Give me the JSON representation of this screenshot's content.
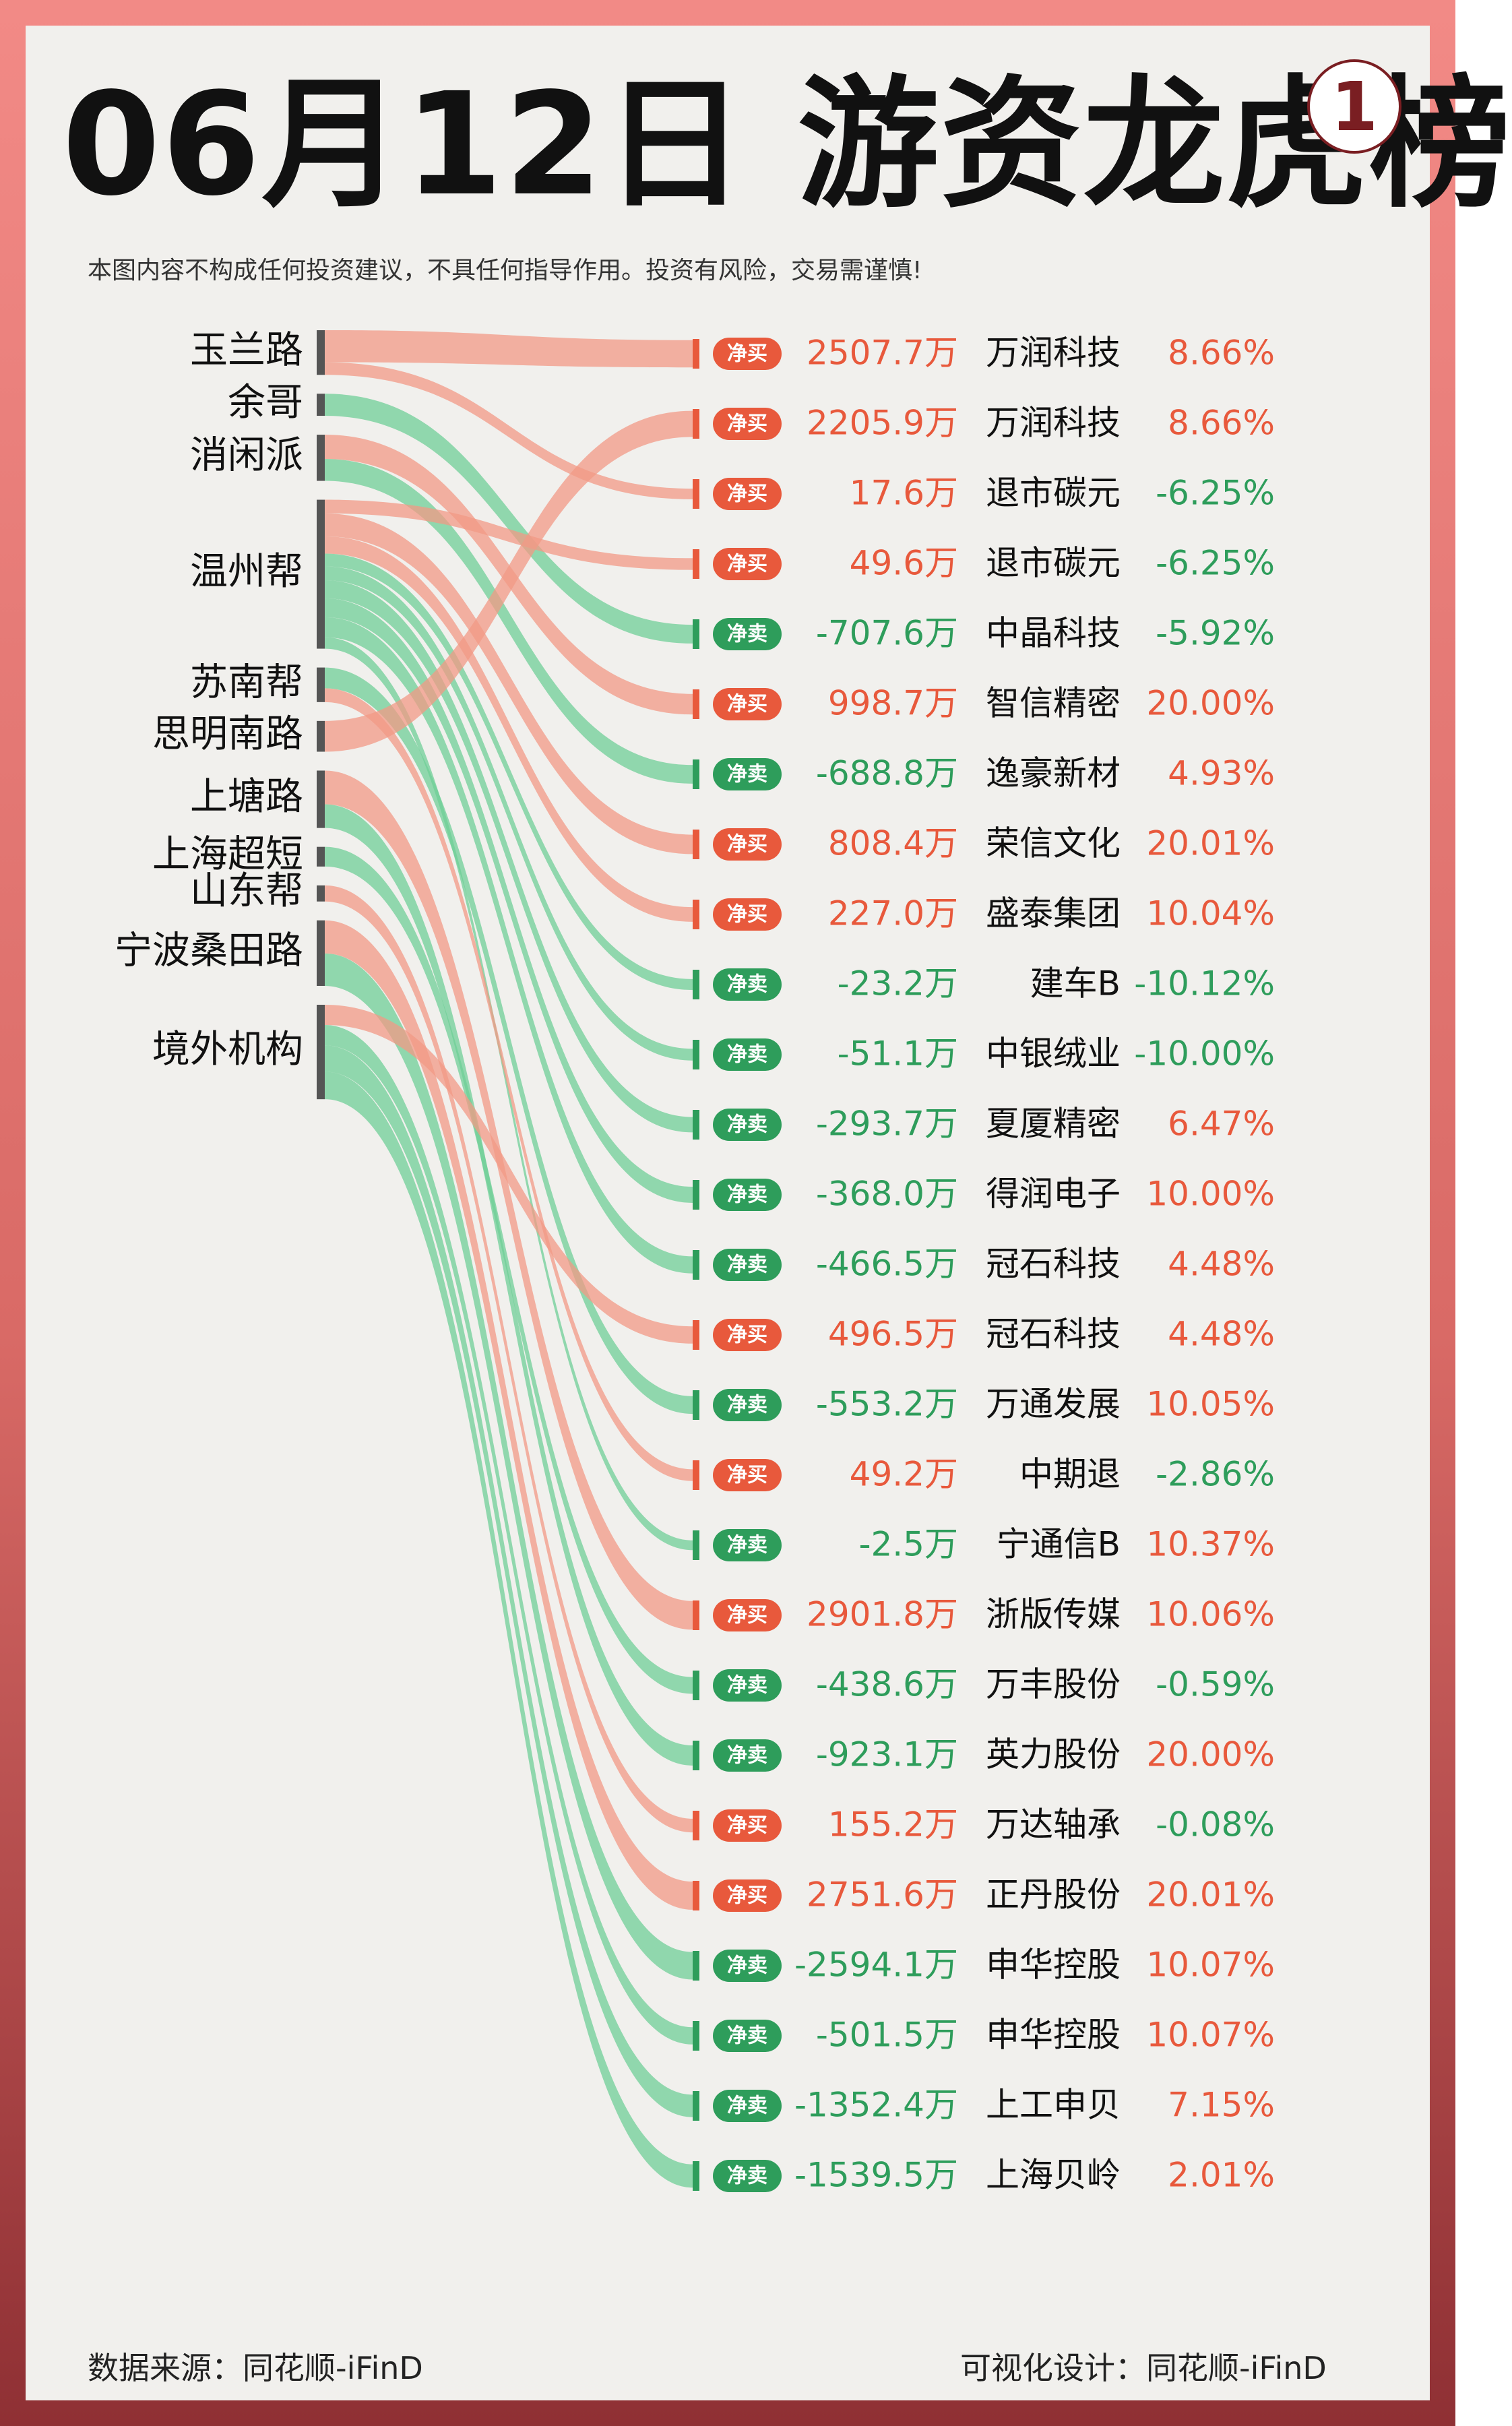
{
  "title": "06月12日 游资龙虎榜",
  "badge": "1",
  "disclaimer": "本图内容不构成任何投资建议，不具任何指导作用。投资有风险，交易需谨慎!",
  "footer": {
    "source": "数据来源：同花顺-iFinD",
    "design": "可视化设计：同花顺-iFinD"
  },
  "colors": {
    "buy": "#e8593c",
    "sell": "#2e9d5b",
    "buy_flow": "#f29a85",
    "sell_flow": "#6fcf97",
    "text": "#111111",
    "frame": "#e07a77"
  },
  "chart_data": {
    "type": "sankey",
    "unit": "万",
    "sources": [
      "玉兰路",
      "余哥",
      "消闲派",
      "温州帮",
      "苏南帮",
      "思明南路",
      "上塘路",
      "上海超短",
      "山东帮",
      "宁波桑田路",
      "境外机构"
    ],
    "rows": [
      {
        "source": "玉兰路",
        "action": "净买",
        "amount": "2507.7万",
        "value": 2507.7,
        "stock": "万润科技",
        "change": "8.66%"
      },
      {
        "source": "思明南路",
        "action": "净买",
        "amount": "2205.9万",
        "value": 2205.9,
        "stock": "万润科技",
        "change": "8.66%"
      },
      {
        "source": "玉兰路",
        "action": "净买",
        "amount": "17.6万",
        "value": 17.6,
        "stock": "退市碳元",
        "change": "-6.25%"
      },
      {
        "source": "温州帮",
        "action": "净买",
        "amount": "49.6万",
        "value": 49.6,
        "stock": "退市碳元",
        "change": "-6.25%"
      },
      {
        "source": "余哥",
        "action": "净卖",
        "amount": "-707.6万",
        "value": -707.6,
        "stock": "中晶科技",
        "change": "-5.92%"
      },
      {
        "source": "消闲派",
        "action": "净买",
        "amount": "998.7万",
        "value": 998.7,
        "stock": "智信精密",
        "change": "20.00%"
      },
      {
        "source": "消闲派",
        "action": "净卖",
        "amount": "-688.8万",
        "value": -688.8,
        "stock": "逸豪新材",
        "change": "4.93%"
      },
      {
        "source": "温州帮",
        "action": "净买",
        "amount": "808.4万",
        "value": 808.4,
        "stock": "荣信文化",
        "change": "20.01%"
      },
      {
        "source": "温州帮",
        "action": "净买",
        "amount": "227.0万",
        "value": 227.0,
        "stock": "盛泰集团",
        "change": "10.04%"
      },
      {
        "source": "温州帮",
        "action": "净卖",
        "amount": "-23.2万",
        "value": -23.2,
        "stock": "建车B",
        "change": "-10.12%"
      },
      {
        "source": "温州帮",
        "action": "净卖",
        "amount": "-51.1万",
        "value": -51.1,
        "stock": "中银绒业",
        "change": "-10.00%"
      },
      {
        "source": "温州帮",
        "action": "净卖",
        "amount": "-293.7万",
        "value": -293.7,
        "stock": "夏厦精密",
        "change": "6.47%"
      },
      {
        "source": "温州帮",
        "action": "净卖",
        "amount": "-368.0万",
        "value": -368.0,
        "stock": "得润电子",
        "change": "10.00%"
      },
      {
        "source": "温州帮",
        "action": "净卖",
        "amount": "-466.5万",
        "value": -466.5,
        "stock": "冠石科技",
        "change": "4.48%"
      },
      {
        "source": "境外机构",
        "action": "净买",
        "amount": "496.5万",
        "value": 496.5,
        "stock": "冠石科技",
        "change": "4.48%"
      },
      {
        "source": "苏南帮",
        "action": "净卖",
        "amount": "-553.2万",
        "value": -553.2,
        "stock": "万通发展",
        "change": "10.05%"
      },
      {
        "source": "苏南帮",
        "action": "净买",
        "amount": "49.2万",
        "value": 49.2,
        "stock": "中期退",
        "change": "-2.86%"
      },
      {
        "source": "温州帮",
        "action": "净卖",
        "amount": "-2.5万",
        "value": -2.5,
        "stock": "宁通信B",
        "change": "10.37%"
      },
      {
        "source": "上塘路",
        "action": "净买",
        "amount": "2901.8万",
        "value": 2901.8,
        "stock": "浙版传媒",
        "change": "10.06%"
      },
      {
        "source": "上海超短",
        "action": "净卖",
        "amount": "-438.6万",
        "value": -438.6,
        "stock": "万丰股份",
        "change": "-0.59%"
      },
      {
        "source": "上塘路",
        "action": "净卖",
        "amount": "-923.1万",
        "value": -923.1,
        "stock": "英力股份",
        "change": "20.00%"
      },
      {
        "source": "山东帮",
        "action": "净买",
        "amount": "155.2万",
        "value": 155.2,
        "stock": "万达轴承",
        "change": "-0.08%"
      },
      {
        "source": "宁波桑田路",
        "action": "净买",
        "amount": "2751.6万",
        "value": 2751.6,
        "stock": "正丹股份",
        "change": "20.01%"
      },
      {
        "source": "宁波桑田路",
        "action": "净卖",
        "amount": "-2594.1万",
        "value": -2594.1,
        "stock": "申华控股",
        "change": "10.07%"
      },
      {
        "source": "境外机构",
        "action": "净卖",
        "amount": "-501.5万",
        "value": -501.5,
        "stock": "申华控股",
        "change": "10.07%"
      },
      {
        "source": "境外机构",
        "action": "净卖",
        "amount": "-1352.4万",
        "value": -1352.4,
        "stock": "上工申贝",
        "change": "7.15%"
      },
      {
        "source": "境外机构",
        "action": "净卖",
        "amount": "-1539.5万",
        "value": -1539.5,
        "stock": "上海贝岭",
        "change": "2.01%"
      }
    ]
  }
}
